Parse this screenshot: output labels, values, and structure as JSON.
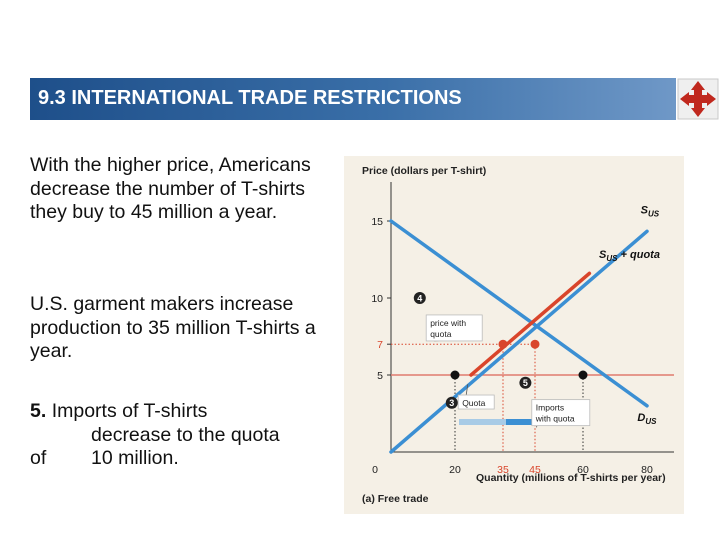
{
  "header": {
    "title": "9.3 INTERNATIONAL TRADE RESTRICTIONS"
  },
  "nav": {
    "icon": "four-way-arrows-icon",
    "color": "#c0281e"
  },
  "paragraphs": {
    "p1": "With the higher price, Americans decrease the number of T-shirts they buy to 45 million a year.",
    "p2": "U.S. garment makers increase production to 35 million T-shirts a year.",
    "p3_num": "5.",
    "p3_line1": "Imports of T-shirts",
    "p3_line2": "decrease to the quota",
    "p3_of": "of",
    "p3_line3": "10 million."
  },
  "chart_data": {
    "type": "line",
    "ylabel": "Price (dollars per T-shirt)",
    "xlabel": "Quantity (millions of T-shirts per year)",
    "caption": "(a) Free trade",
    "xlim": [
      0,
      90
    ],
    "ylim": [
      0,
      17
    ],
    "x_ticks": [
      "0",
      "20",
      "35",
      "45",
      "60",
      "80"
    ],
    "y_ticks": [
      "15",
      "10",
      "7",
      "5"
    ],
    "series": [
      {
        "name": "D_US",
        "label_main": "D",
        "label_sub": "US",
        "color": "#3b8fd3",
        "points": [
          [
            0,
            15
          ],
          [
            80,
            3
          ]
        ]
      },
      {
        "name": "S_US",
        "label_main": "S",
        "label_sub": "US",
        "color": "#3b8fd3",
        "points": [
          [
            0,
            0
          ],
          [
            80,
            14.33
          ]
        ]
      },
      {
        "name": "S_US + quota",
        "label_main": "S",
        "label_sub": "US",
        "label_suffix": " + quota",
        "color": "#d9452b",
        "points": [
          [
            25,
            5
          ],
          [
            62,
            11.6
          ]
        ]
      }
    ],
    "world_price": {
      "value": 5,
      "color": "#e07a6e"
    },
    "quota_price": {
      "value": 7,
      "color": "#d9452b"
    },
    "points": [
      {
        "x": 20,
        "y": 5,
        "color": "#111111"
      },
      {
        "x": 60,
        "y": 5,
        "color": "#111111"
      },
      {
        "x": 35,
        "y": 7,
        "color": "#d9452b"
      },
      {
        "x": 45,
        "y": 7,
        "color": "#d9452b"
      }
    ],
    "annotations": [
      {
        "num": "4",
        "text": [
          "price with",
          "quota"
        ]
      },
      {
        "num": "3",
        "text": [
          "Quota"
        ]
      },
      {
        "num": "5",
        "text": [
          "Imports",
          "with quota"
        ]
      }
    ]
  }
}
